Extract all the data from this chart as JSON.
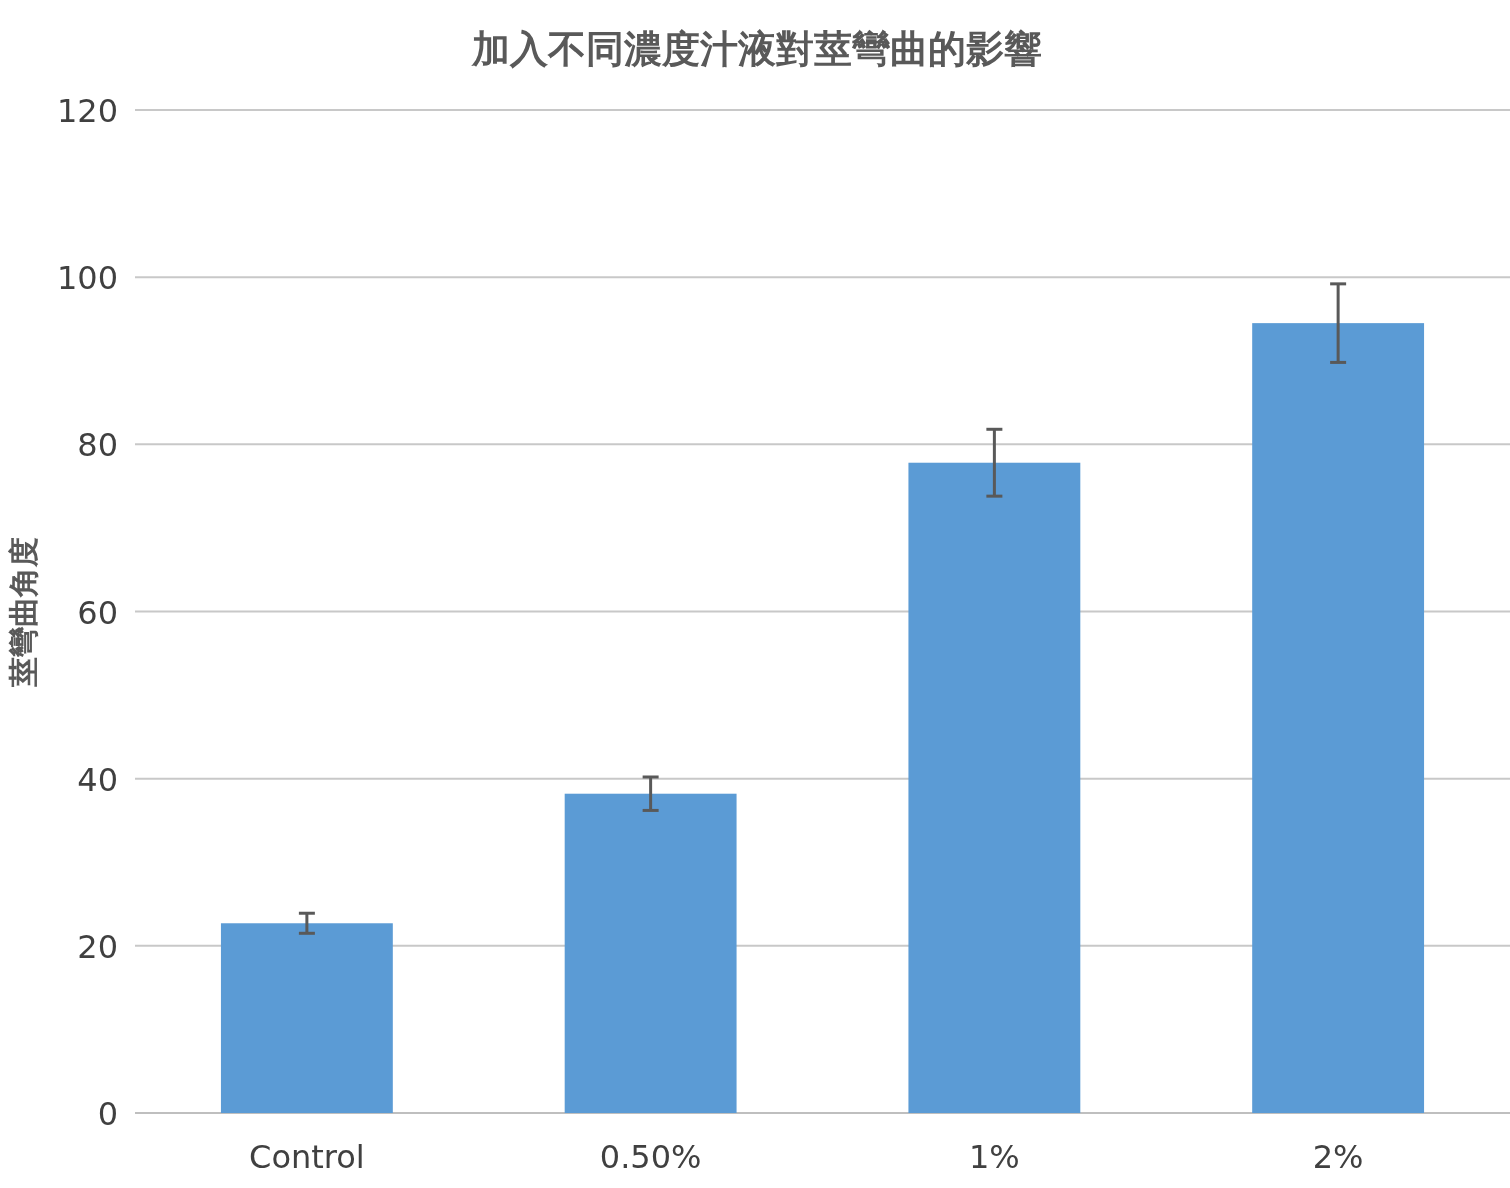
{
  "chart_data": {
    "type": "bar",
    "title": "加入不同濃度汁液對莖彎曲的影響",
    "ylabel": "莖彎曲角度",
    "categories": [
      "Control",
      "0.50%",
      "1%",
      "2%"
    ],
    "values": [
      22.7,
      38.2,
      77.8,
      94.5
    ],
    "errors": [
      1.2,
      2,
      4,
      4.7
    ],
    "color": "#5b9bd5",
    "ylim": [
      0,
      120
    ],
    "yticks": [
      0,
      20,
      40,
      60,
      80,
      100,
      120
    ],
    "grid": "y"
  }
}
